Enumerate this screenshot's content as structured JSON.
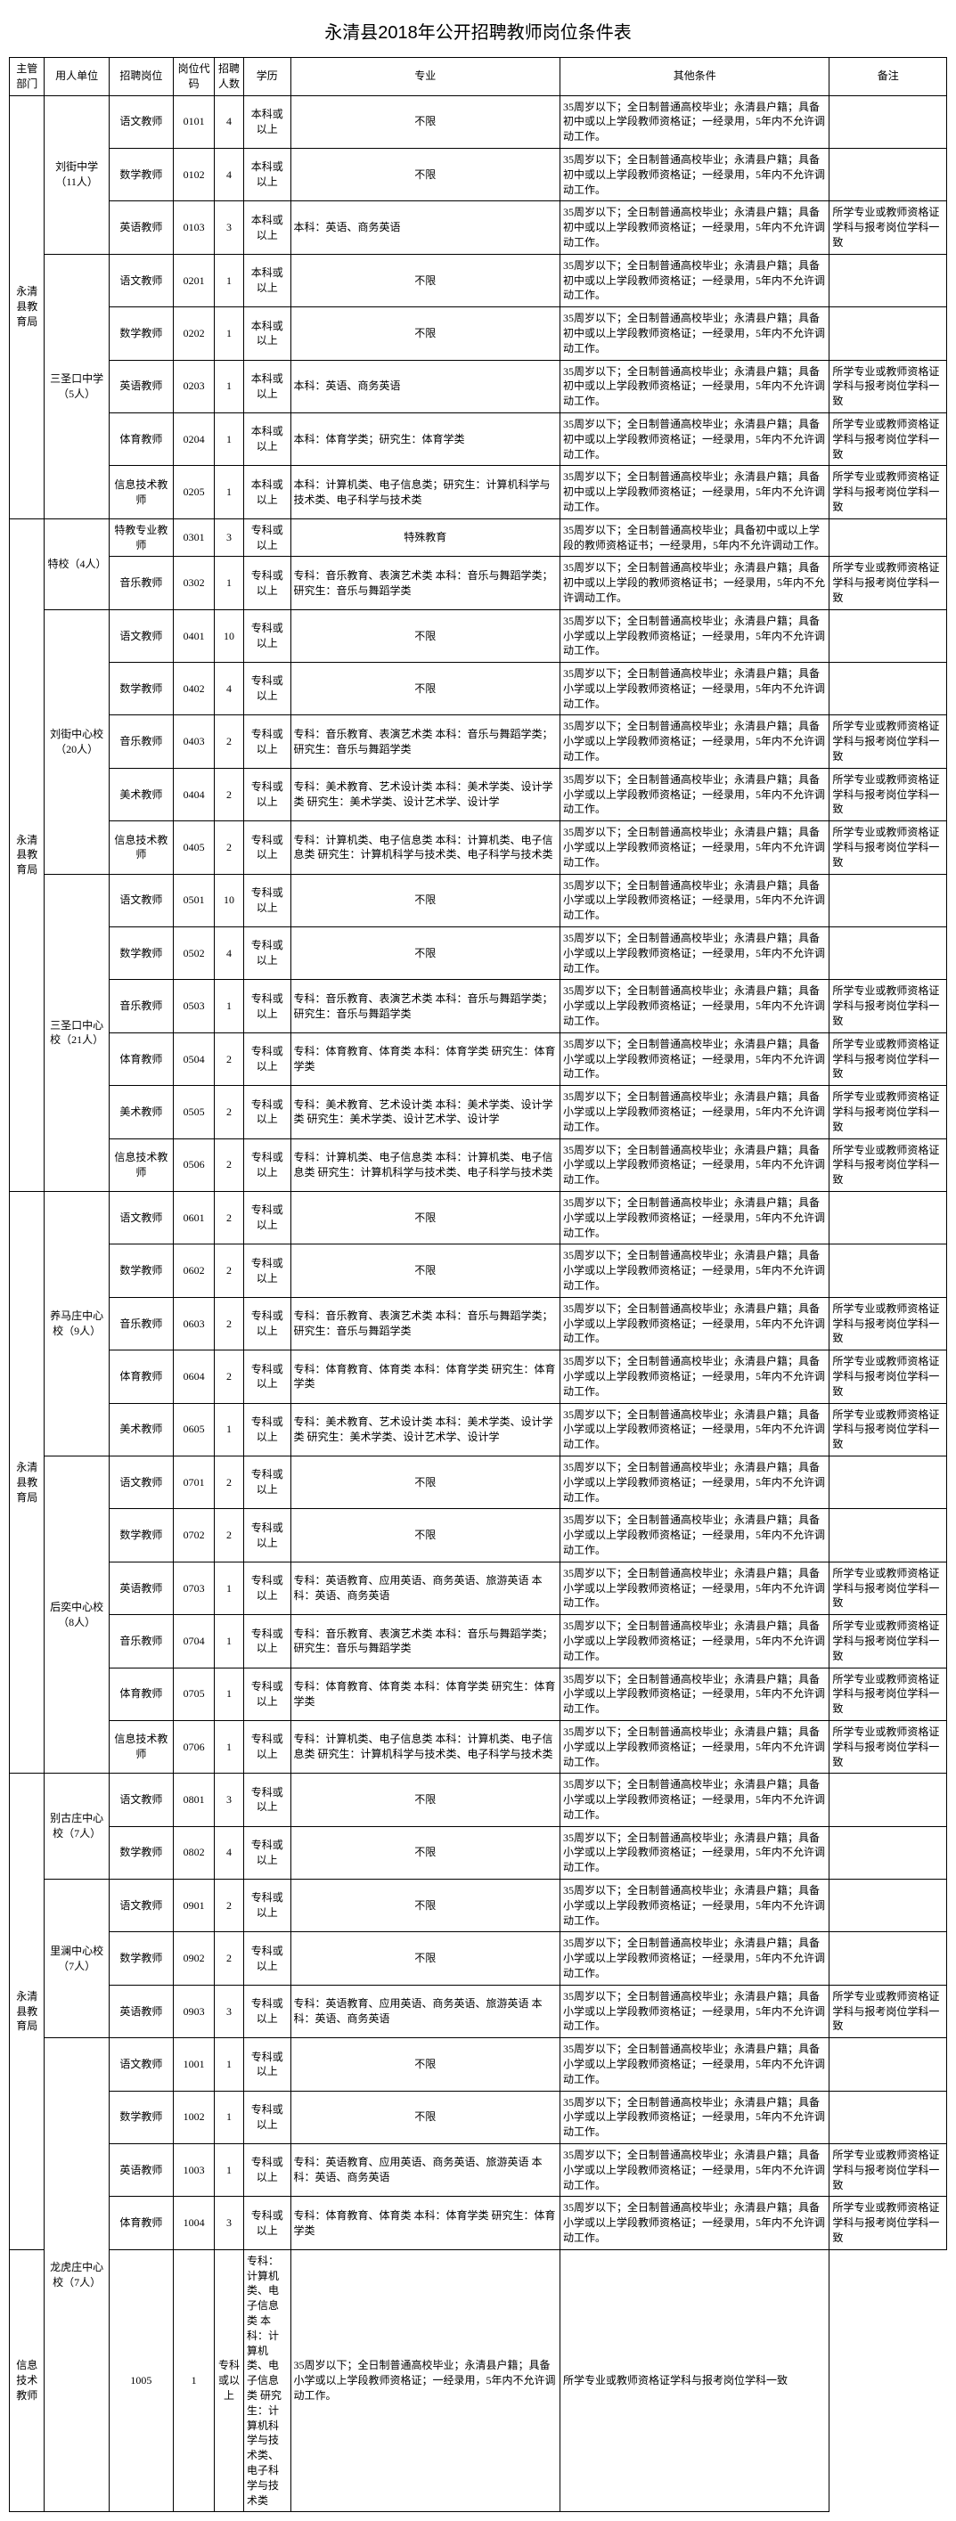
{
  "title": "永清县2018年公开招聘教师岗位条件表",
  "headers": {
    "dept": "主管部门",
    "unit": "用人单位",
    "pos": "招聘岗位",
    "code": "岗位代码",
    "num": "招聘人数",
    "edu": "学历",
    "major": "专业",
    "other": "其他条件",
    "note": "备注"
  },
  "dept": "永清县教育局",
  "edu_bk": "本科或以上",
  "edu_zk": "专科或以上",
  "cond_chu": "35周岁以下；全日制普通高校毕业；永清县户籍；具备初中或以上学段教师资格证；一经录用，5年内不允许调动工作。",
  "cond_xiao": "35周岁以下；全日制普通高校毕业；永清县户籍；具备小学或以上学段教师资格证；一经录用，5年内不允许调动工作。",
  "cond_te": "35周岁以下；全日制普通高校毕业；具备初中或以上学段的教师资格证书；一经录用，5年内不允许调动工作。",
  "cond_te2": "35周岁以下；全日制普通高校毕业；永清县户籍；具备初中或以上学段的教师资格证书；一经录用，5年内不允许调动工作。",
  "note_std": "所学专业或教师资格证学科与报考岗位学科一致",
  "unlimited": "不限",
  "major_eng_bk": "本科：英语、商务英语",
  "major_eng_zk": "专科：英语教育、应用英语、商务英语、旅游英语 本科：英语、商务英语",
  "major_pe_bk": "本科：体育学类；研究生：体育学类",
  "major_pe_zk": "专科：体育教育、体育类 本科：体育学类 研究生：体育学类",
  "major_it_bk": "本科：计算机类、电子信息类；研究生：计算机科学与技术类、电子科学与技术类",
  "major_it_zk": "专科：计算机类、电子信息类 本科：计算机类、电子信息类 研究生：计算机科学与技术类、电子科学与技术类",
  "major_music_zk": "专科：音乐教育、表演艺术类 本科：音乐与舞蹈学类；研究生：音乐与舞蹈学类",
  "major_art_zk": "专科：美术教育、艺术设计类 本科：美术学类、设计学类 研究生：美术学类、设计艺术学、设计学",
  "major_special": "特殊教育",
  "units": [
    {
      "name": "刘街中学（11人）",
      "rows": [
        {
          "pos": "语文教师",
          "code": "0101",
          "num": "4",
          "edu": "bk",
          "major": "unlimited",
          "cond": "chu",
          "note": ""
        },
        {
          "pos": "数学教师",
          "code": "0102",
          "num": "4",
          "edu": "bk",
          "major": "unlimited",
          "cond": "chu",
          "note": ""
        },
        {
          "pos": "英语教师",
          "code": "0103",
          "num": "3",
          "edu": "bk",
          "major": "eng_bk",
          "cond": "chu",
          "note": "std"
        }
      ]
    },
    {
      "name": "三圣口中学（5人）",
      "rows": [
        {
          "pos": "语文教师",
          "code": "0201",
          "num": "1",
          "edu": "bk",
          "major": "unlimited",
          "cond": "chu",
          "note": ""
        },
        {
          "pos": "数学教师",
          "code": "0202",
          "num": "1",
          "edu": "bk",
          "major": "unlimited",
          "cond": "chu",
          "note": ""
        },
        {
          "pos": "英语教师",
          "code": "0203",
          "num": "1",
          "edu": "bk",
          "major": "eng_bk",
          "cond": "chu",
          "note": "std"
        },
        {
          "pos": "体育教师",
          "code": "0204",
          "num": "1",
          "edu": "bk",
          "major": "pe_bk",
          "cond": "chu",
          "note": "std"
        },
        {
          "pos": "信息技术教师",
          "code": "0205",
          "num": "1",
          "edu": "bk",
          "major": "it_bk",
          "cond": "chu",
          "note": "std"
        }
      ]
    },
    {
      "name": "特校（4人）",
      "rows": [
        {
          "pos": "特教专业教师",
          "code": "0301",
          "num": "3",
          "edu": "zk",
          "major": "special",
          "cond": "te",
          "note": ""
        },
        {
          "pos": "音乐教师",
          "code": "0302",
          "num": "1",
          "edu": "zk",
          "major": "music_zk",
          "cond": "te2",
          "note": "std"
        }
      ]
    },
    {
      "name": "刘街中心校（20人）",
      "rows": [
        {
          "pos": "语文教师",
          "code": "0401",
          "num": "10",
          "edu": "zk",
          "major": "unlimited",
          "cond": "xiao",
          "note": ""
        },
        {
          "pos": "数学教师",
          "code": "0402",
          "num": "4",
          "edu": "zk",
          "major": "unlimited",
          "cond": "xiao",
          "note": ""
        },
        {
          "pos": "音乐教师",
          "code": "0403",
          "num": "2",
          "edu": "zk",
          "major": "music_zk",
          "cond": "xiao",
          "note": "std"
        },
        {
          "pos": "美术教师",
          "code": "0404",
          "num": "2",
          "edu": "zk",
          "major": "art_zk",
          "cond": "xiao",
          "note": "std"
        },
        {
          "pos": "信息技术教师",
          "code": "0405",
          "num": "2",
          "edu": "zk",
          "major": "it_zk",
          "cond": "xiao",
          "note": "std"
        }
      ]
    },
    {
      "name": "三圣口中心校（21人）",
      "rows": [
        {
          "pos": "语文教师",
          "code": "0501",
          "num": "10",
          "edu": "zk",
          "major": "unlimited",
          "cond": "xiao",
          "note": ""
        },
        {
          "pos": "数学教师",
          "code": "0502",
          "num": "4",
          "edu": "zk",
          "major": "unlimited",
          "cond": "xiao",
          "note": ""
        },
        {
          "pos": "音乐教师",
          "code": "0503",
          "num": "1",
          "edu": "zk",
          "major": "music_zk",
          "cond": "xiao",
          "note": "std"
        },
        {
          "pos": "体育教师",
          "code": "0504",
          "num": "2",
          "edu": "zk",
          "major": "pe_zk",
          "cond": "xiao",
          "note": "std"
        },
        {
          "pos": "美术教师",
          "code": "0505",
          "num": "2",
          "edu": "zk",
          "major": "art_zk",
          "cond": "xiao",
          "note": "std"
        },
        {
          "pos": "信息技术教师",
          "code": "0506",
          "num": "2",
          "edu": "zk",
          "major": "it_zk",
          "cond": "xiao",
          "note": "std"
        }
      ]
    },
    {
      "name": "养马庄中心校（9人）",
      "rows": [
        {
          "pos": "语文教师",
          "code": "0601",
          "num": "2",
          "edu": "zk",
          "major": "unlimited",
          "cond": "xiao",
          "note": ""
        },
        {
          "pos": "数学教师",
          "code": "0602",
          "num": "2",
          "edu": "zk",
          "major": "unlimited",
          "cond": "xiao",
          "note": ""
        },
        {
          "pos": "音乐教师",
          "code": "0603",
          "num": "2",
          "edu": "zk",
          "major": "music_zk",
          "cond": "xiao",
          "note": "std"
        },
        {
          "pos": "体育教师",
          "code": "0604",
          "num": "2",
          "edu": "zk",
          "major": "pe_zk",
          "cond": "xiao",
          "note": "std"
        },
        {
          "pos": "美术教师",
          "code": "0605",
          "num": "1",
          "edu": "zk",
          "major": "art_zk",
          "cond": "xiao",
          "note": "std"
        }
      ]
    },
    {
      "name": "后奕中心校（8人）",
      "rows": [
        {
          "pos": "语文教师",
          "code": "0701",
          "num": "2",
          "edu": "zk",
          "major": "unlimited",
          "cond": "xiao",
          "note": ""
        },
        {
          "pos": "数学教师",
          "code": "0702",
          "num": "2",
          "edu": "zk",
          "major": "unlimited",
          "cond": "xiao",
          "note": ""
        },
        {
          "pos": "英语教师",
          "code": "0703",
          "num": "1",
          "edu": "zk",
          "major": "eng_zk",
          "cond": "xiao",
          "note": "std"
        },
        {
          "pos": "音乐教师",
          "code": "0704",
          "num": "1",
          "edu": "zk",
          "major": "music_zk",
          "cond": "xiao",
          "note": "std"
        },
        {
          "pos": "体育教师",
          "code": "0705",
          "num": "1",
          "edu": "zk",
          "major": "pe_zk",
          "cond": "xiao",
          "note": "std"
        },
        {
          "pos": "信息技术教师",
          "code": "0706",
          "num": "1",
          "edu": "zk",
          "major": "it_zk",
          "cond": "xiao",
          "note": "std"
        }
      ]
    },
    {
      "name": "别古庄中心校（7人）",
      "rows": [
        {
          "pos": "语文教师",
          "code": "0801",
          "num": "3",
          "edu": "zk",
          "major": "unlimited",
          "cond": "xiao",
          "note": ""
        },
        {
          "pos": "数学教师",
          "code": "0802",
          "num": "4",
          "edu": "zk",
          "major": "unlimited",
          "cond": "xiao",
          "note": ""
        }
      ]
    },
    {
      "name": "里澜中心校（7人）",
      "rows": [
        {
          "pos": "语文教师",
          "code": "0901",
          "num": "2",
          "edu": "zk",
          "major": "unlimited",
          "cond": "xiao",
          "note": ""
        },
        {
          "pos": "数学教师",
          "code": "0902",
          "num": "2",
          "edu": "zk",
          "major": "unlimited",
          "cond": "xiao",
          "note": ""
        },
        {
          "pos": "英语教师",
          "code": "0903",
          "num": "3",
          "edu": "zk",
          "major": "eng_zk",
          "cond": "xiao",
          "note": "std"
        }
      ]
    },
    {
      "name": "龙虎庄中心校（7人）",
      "rows": [
        {
          "pos": "语文教师",
          "code": "1001",
          "num": "1",
          "edu": "zk",
          "major": "unlimited",
          "cond": "xiao",
          "note": ""
        },
        {
          "pos": "数学教师",
          "code": "1002",
          "num": "1",
          "edu": "zk",
          "major": "unlimited",
          "cond": "xiao",
          "note": ""
        },
        {
          "pos": "英语教师",
          "code": "1003",
          "num": "1",
          "edu": "zk",
          "major": "eng_zk",
          "cond": "xiao",
          "note": "std"
        },
        {
          "pos": "体育教师",
          "code": "1004",
          "num": "3",
          "edu": "zk",
          "major": "pe_zk",
          "cond": "xiao",
          "note": "std"
        },
        {
          "pos": "信息技术教师",
          "code": "1005",
          "num": "1",
          "edu": "zk",
          "major": "it_zk",
          "cond": "xiao",
          "note": "std"
        }
      ]
    }
  ],
  "dept_groups": [
    8,
    13,
    11,
    9
  ]
}
